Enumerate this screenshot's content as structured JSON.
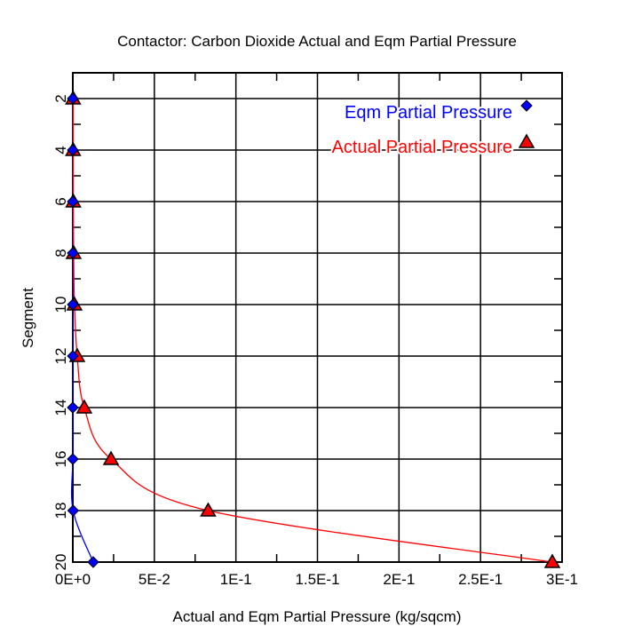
{
  "chart_data": {
    "type": "scatter",
    "title": "Contactor: Carbon Dioxide Actual and Eqm Partial Pressure",
    "xlabel": "Actual and Eqm Partial Pressure (kg/sqcm)",
    "ylabel": "Segment",
    "xlim": [
      0,
      0.3
    ],
    "ylim": [
      1,
      20
    ],
    "y_inverted": true,
    "grid": true,
    "legend_position": "top-right",
    "x_ticks": [
      0,
      0.05,
      0.1,
      0.15,
      0.2,
      0.25,
      0.3
    ],
    "x_tick_labels": [
      "0E+0",
      "5E-2",
      "1E-1",
      "1.5E-1",
      "2E-1",
      "2.5E-1",
      "3E-1"
    ],
    "y_ticks": [
      2,
      4,
      6,
      8,
      10,
      12,
      14,
      16,
      18,
      20
    ],
    "y_tick_labels": [
      "2",
      "4",
      "6",
      "8",
      "10",
      "12",
      "14",
      "16",
      "18",
      "20"
    ],
    "series": [
      {
        "name": "Eqm Partial Pressure",
        "color": "#0000ff",
        "marker": "diamond",
        "y": [
          2,
          4,
          6,
          8,
          10,
          12,
          14,
          16,
          18,
          20
        ],
        "x": [
          0,
          0,
          0,
          0,
          0,
          0,
          0,
          0,
          0.0002,
          0.0125
        ]
      },
      {
        "name": "Actual Partial Pressure",
        "color": "#ff0000",
        "marker": "triangle",
        "y": [
          2,
          4,
          6,
          8,
          10,
          12,
          14,
          16,
          18,
          20
        ],
        "x": [
          0.0002,
          0.0002,
          0.0003,
          0.0005,
          0.001,
          0.0027,
          0.007,
          0.0234,
          0.083,
          0.294
        ]
      }
    ]
  }
}
